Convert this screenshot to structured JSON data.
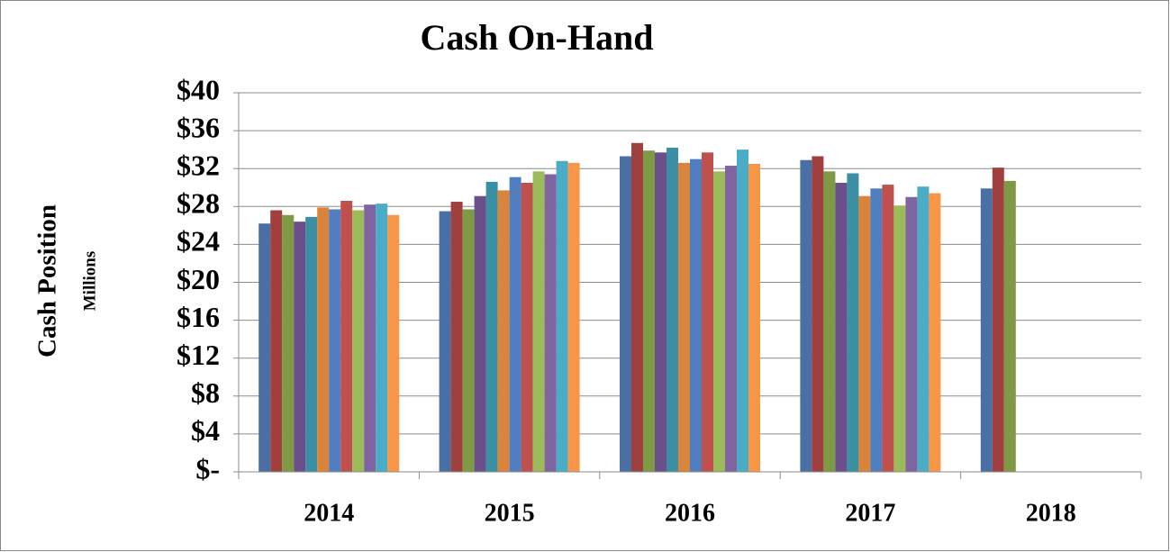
{
  "chart_data": {
    "type": "bar",
    "title": "Cash On-Hand",
    "y_label": "Cash Position",
    "y_sublabel": "Millions",
    "categories": [
      "2014",
      "2015",
      "2016",
      "2017",
      "2018"
    ],
    "series": [
      {
        "color": "#4a6fa5",
        "values": [
          26.2,
          27.5,
          33.3,
          32.9,
          29.9
        ]
      },
      {
        "color": "#a0403e",
        "values": [
          27.6,
          28.5,
          34.7,
          33.3,
          32.1
        ]
      },
      {
        "color": "#7f9a45",
        "values": [
          27.1,
          27.7,
          33.9,
          31.7,
          30.7
        ]
      },
      {
        "color": "#6a4f8a",
        "values": [
          26.4,
          29.1,
          33.7,
          30.5,
          null
        ]
      },
      {
        "color": "#3a8fa3",
        "values": [
          26.9,
          30.6,
          34.2,
          31.5,
          null
        ]
      },
      {
        "color": "#d9843a",
        "values": [
          27.9,
          29.7,
          32.6,
          29.1,
          null
        ]
      },
      {
        "color": "#4f7fc0",
        "values": [
          27.7,
          31.1,
          33.0,
          29.9,
          null
        ]
      },
      {
        "color": "#c0504d",
        "values": [
          28.6,
          30.5,
          33.7,
          30.3,
          null
        ]
      },
      {
        "color": "#9bbb59",
        "values": [
          27.6,
          31.7,
          31.7,
          28.1,
          null
        ]
      },
      {
        "color": "#8064a2",
        "values": [
          28.2,
          31.4,
          32.3,
          29.0,
          null
        ]
      },
      {
        "color": "#4bacc6",
        "values": [
          28.3,
          32.8,
          34.0,
          30.1,
          null
        ]
      },
      {
        "color": "#f79646",
        "values": [
          27.1,
          32.6,
          32.5,
          29.4,
          null
        ]
      }
    ],
    "ylim": [
      0,
      40
    ],
    "yticks": [
      {
        "value": 0,
        "label": "$-"
      },
      {
        "value": 4,
        "label": "$4"
      },
      {
        "value": 8,
        "label": "$8"
      },
      {
        "value": 12,
        "label": "$12"
      },
      {
        "value": 16,
        "label": "$16"
      },
      {
        "value": 20,
        "label": "$20"
      },
      {
        "value": 24,
        "label": "$24"
      },
      {
        "value": 28,
        "label": "$28"
      },
      {
        "value": 32,
        "label": "$32"
      },
      {
        "value": 36,
        "label": "$36"
      },
      {
        "value": 40,
        "label": "$40"
      }
    ],
    "grid": true
  }
}
